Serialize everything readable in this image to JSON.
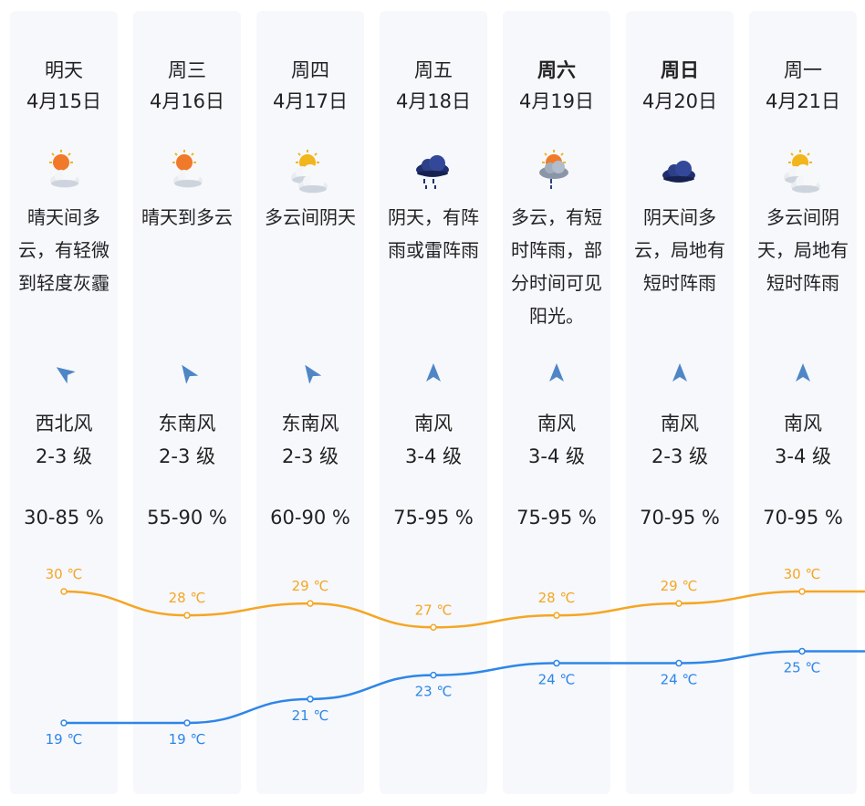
{
  "days": [
    {
      "day": "明天",
      "date": "4月15日",
      "bold": false,
      "icon": "partly-sunny-haze-icon",
      "desc": "晴天间多云，有轻微到轻度灰霾",
      "wind_dir": "西北风",
      "wind_level": "2-3 级",
      "humidity": "30-85 %",
      "wind_icon": "wind-arrow-northwest-icon"
    },
    {
      "day": "周三",
      "date": "4月16日",
      "bold": false,
      "icon": "sunny-to-cloudy-icon",
      "desc": "晴天到多云",
      "wind_dir": "东南风",
      "wind_level": "2-3 级",
      "humidity": "55-90 %",
      "wind_icon": "wind-arrow-southeast-icon"
    },
    {
      "day": "周四",
      "date": "4月17日",
      "bold": false,
      "icon": "cloudy-overcast-icon",
      "desc": "多云间阴天",
      "wind_dir": "东南风",
      "wind_level": "2-3 级",
      "humidity": "60-90 %",
      "wind_icon": "wind-arrow-southeast-icon"
    },
    {
      "day": "周五",
      "date": "4月18日",
      "bold": false,
      "icon": "rain-thunder-icon",
      "desc": "阴天，有阵雨或雷阵雨",
      "wind_dir": "南风",
      "wind_level": "3-4 级",
      "humidity": "75-95 %",
      "wind_icon": "wind-arrow-south-icon"
    },
    {
      "day": "周六",
      "date": "4月19日",
      "bold": true,
      "icon": "cloudy-showers-icon",
      "desc": "多云，有短时阵雨，部分时间可见阳光。",
      "wind_dir": "南风",
      "wind_level": "3-4 级",
      "humidity": "75-95 %",
      "wind_icon": "wind-arrow-south-icon"
    },
    {
      "day": "周日",
      "date": "4月20日",
      "bold": true,
      "icon": "overcast-icon",
      "desc": "阴天间多云，局地有短时阵雨",
      "wind_dir": "南风",
      "wind_level": "2-3 级",
      "humidity": "70-95 %",
      "wind_icon": "wind-arrow-south-icon"
    },
    {
      "day": "周一",
      "date": "4月21日",
      "bold": false,
      "icon": "cloudy-overcast-icon",
      "desc": "多云间阴天，局地有短时阵雨",
      "wind_dir": "南风",
      "wind_level": "3-4 级",
      "humidity": "70-95 %",
      "wind_icon": "wind-arrow-south-icon"
    }
  ],
  "chart_data": {
    "type": "line",
    "categories": [
      "4月15日",
      "4月16日",
      "4月17日",
      "4月18日",
      "4月19日",
      "4月20日",
      "4月21日"
    ],
    "series": [
      {
        "values": [
          30,
          28,
          29,
          27,
          28,
          29,
          30
        ],
        "labels": [
          "30 ℃",
          "28 ℃",
          "29 ℃",
          "27 ℃",
          "28 ℃",
          "29 ℃",
          "30 ℃"
        ],
        "color": "#f5a623"
      },
      {
        "values": [
          19,
          19,
          21,
          23,
          24,
          24,
          25
        ],
        "labels": [
          "19 ℃",
          "19 ℃",
          "21 ℃",
          "23 ℃",
          "24 ℃",
          "24 ℃",
          "25 ℃"
        ],
        "color": "#2e86e8"
      }
    ]
  }
}
